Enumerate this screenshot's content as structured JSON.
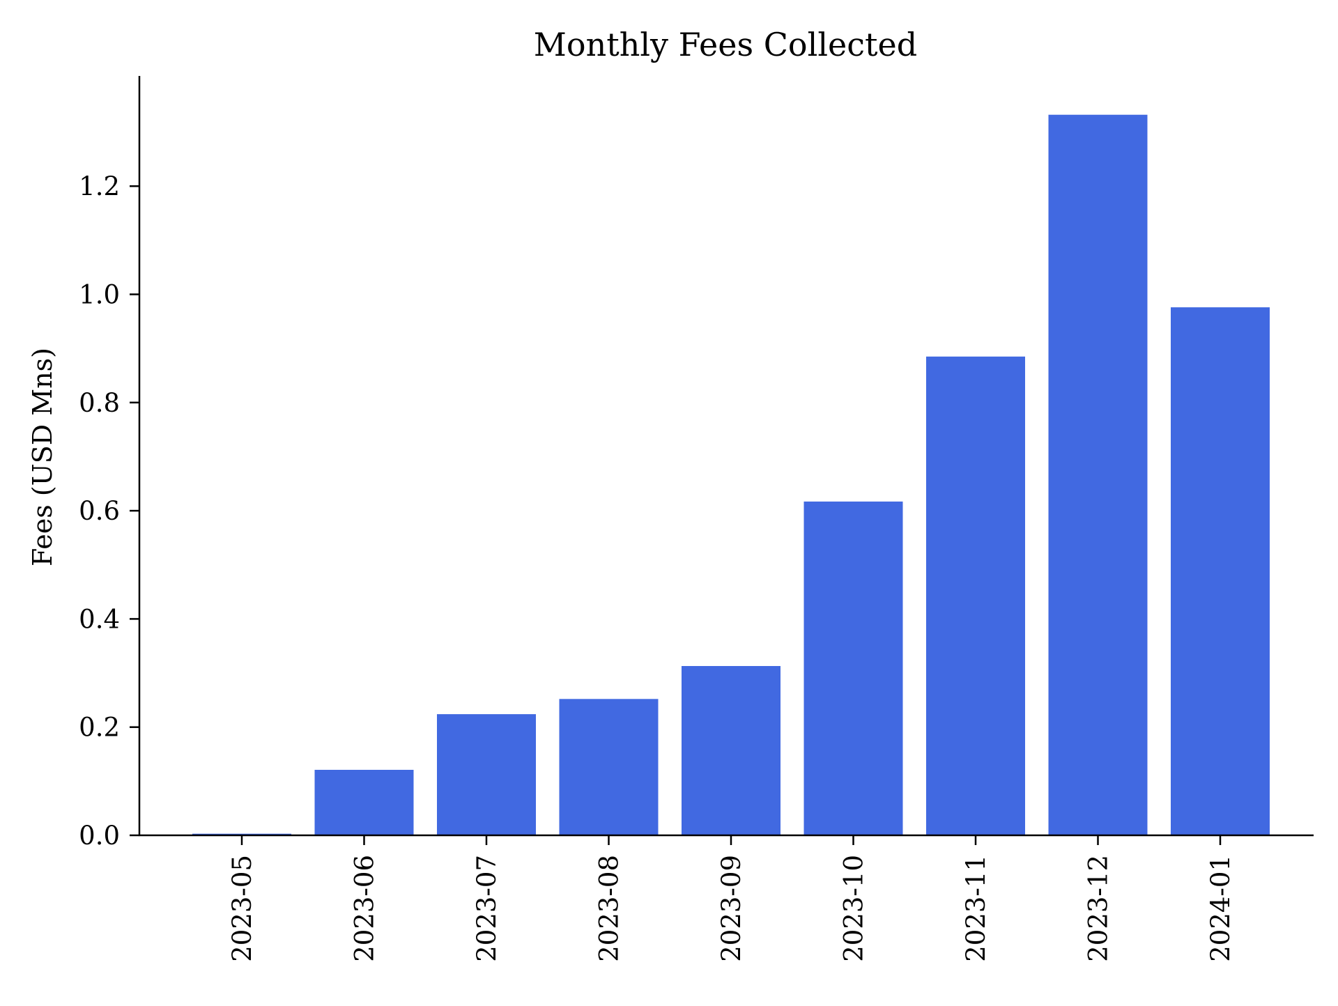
{
  "chart_data": {
    "type": "bar",
    "title": "Monthly Fees Collected",
    "xlabel": "",
    "ylabel": "Fees (USD Mns)",
    "categories": [
      "2023-05",
      "2023-06",
      "2023-07",
      "2023-08",
      "2023-09",
      "2023-10",
      "2023-11",
      "2023-12",
      "2024-01"
    ],
    "values": [
      0.003,
      0.121,
      0.224,
      0.252,
      0.313,
      0.617,
      0.885,
      1.332,
      0.976
    ],
    "ylim": [
      0,
      1.4
    ],
    "yticks": [
      0.0,
      0.2,
      0.4,
      0.6,
      0.8,
      1.0,
      1.2
    ],
    "ytick_labels": [
      "0.0",
      "0.2",
      "0.4",
      "0.6",
      "0.8",
      "1.0",
      "1.2"
    ],
    "bar_color": "#4169e1",
    "grid": false,
    "legend": "none"
  }
}
